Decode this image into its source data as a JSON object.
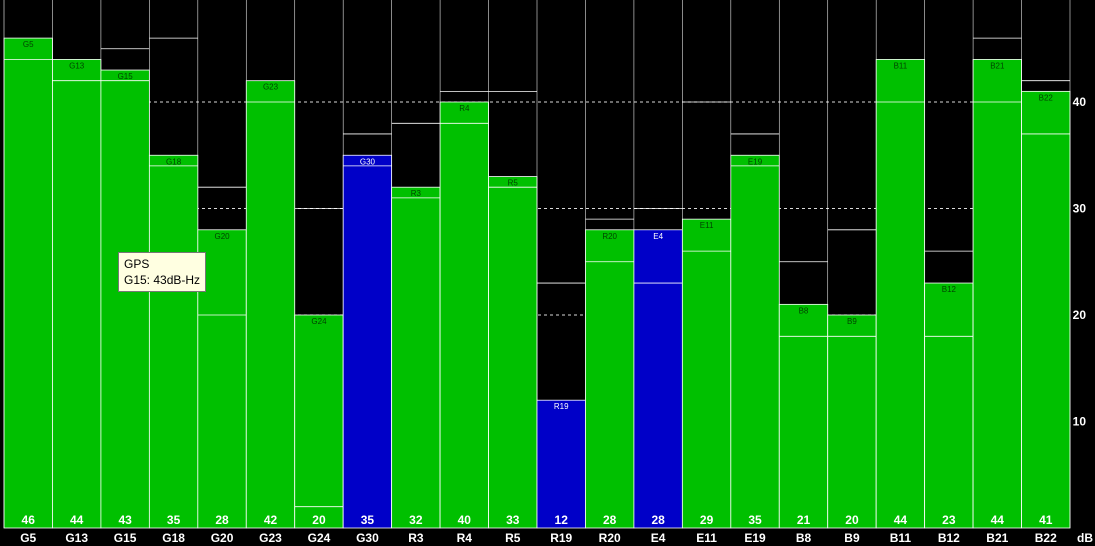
{
  "chart_data": {
    "type": "bar",
    "unit": "dB",
    "ylim": [
      0,
      55
    ],
    "yticks": [
      10,
      20,
      30,
      40,
      50
    ],
    "grid": true,
    "colors": {
      "normal": "#00c000",
      "highlight": "#0000c8",
      "background": "#000000"
    },
    "bars": [
      {
        "sat": "G5",
        "value": 46,
        "max": 44,
        "prev": null,
        "highlight": false
      },
      {
        "sat": "G13",
        "value": 44,
        "max": 42,
        "prev": 50,
        "highlight": false
      },
      {
        "sat": "G15",
        "value": 43,
        "max": 42,
        "prev": 45,
        "highlight": false
      },
      {
        "sat": "G18",
        "value": 35,
        "max": 34,
        "prev": 46,
        "highlight": false
      },
      {
        "sat": "G20",
        "value": 28,
        "max": 20,
        "prev": 32,
        "highlight": false
      },
      {
        "sat": "G23",
        "value": 42,
        "max": 40,
        "prev": null,
        "highlight": false
      },
      {
        "sat": "G24",
        "value": 20,
        "max": 2,
        "prev": 30,
        "highlight": false
      },
      {
        "sat": "G30",
        "value": 35,
        "max": 34,
        "prev": 37,
        "highlight": true
      },
      {
        "sat": "R3",
        "value": 32,
        "max": 31,
        "prev": 38,
        "highlight": false
      },
      {
        "sat": "R4",
        "value": 40,
        "max": 38,
        "prev": 41,
        "highlight": false
      },
      {
        "sat": "R5",
        "value": 33,
        "max": 32,
        "prev": 41,
        "highlight": false
      },
      {
        "sat": "R19",
        "value": 12,
        "max": null,
        "prev": 23,
        "highlight": true
      },
      {
        "sat": "R20",
        "value": 28,
        "max": 25,
        "prev": 29,
        "highlight": false
      },
      {
        "sat": "E4",
        "value": 28,
        "max": 23,
        "prev": 30,
        "highlight": true
      },
      {
        "sat": "E11",
        "value": 29,
        "max": 26,
        "prev": 40,
        "highlight": false
      },
      {
        "sat": "E19",
        "value": 35,
        "max": 34,
        "prev": 37,
        "highlight": false
      },
      {
        "sat": "B8",
        "value": 21,
        "max": 18,
        "prev": 25,
        "highlight": false
      },
      {
        "sat": "B9",
        "value": 20,
        "max": 18,
        "prev": 28,
        "highlight": false
      },
      {
        "sat": "B11",
        "value": 44,
        "max": 40,
        "prev": null,
        "highlight": false
      },
      {
        "sat": "B12",
        "value": 23,
        "max": 18,
        "prev": 26,
        "highlight": false
      },
      {
        "sat": "B21",
        "value": 44,
        "max": 40,
        "prev": 46,
        "highlight": false
      },
      {
        "sat": "B22",
        "value": 41,
        "max": 37,
        "prev": 42,
        "highlight": false
      }
    ]
  },
  "tooltip": {
    "line1": "GPS",
    "line2": "G15: 43dB-Hz"
  }
}
